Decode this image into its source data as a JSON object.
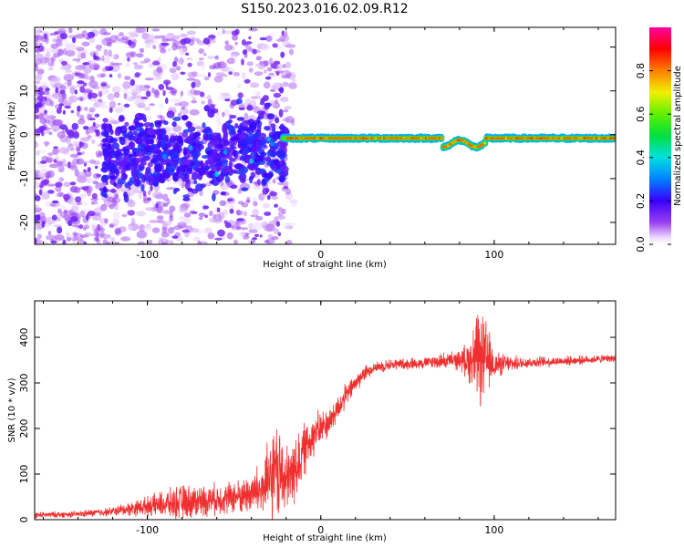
{
  "title": "S150.2023.016.02.09.R12",
  "chart_data": [
    {
      "type": "heatmap",
      "xlabel": "Height of straight line (km)",
      "ylabel": "Frequency (Hz)",
      "xlim": [
        -165,
        170
      ],
      "ylim": [
        -25,
        24.5
      ],
      "xticks": [
        -100,
        0,
        100
      ],
      "yticks": [
        -20,
        -10,
        0,
        10,
        20
      ],
      "colorbar": {
        "label": "Normalized spectral amplitude",
        "range": [
          0,
          1
        ],
        "ticks": [
          0.0,
          0.2,
          0.4,
          0.6,
          0.8
        ]
      },
      "features": [
        {
          "name": "diffuse scatter",
          "x_range": [
            -165,
            -20
          ],
          "freq_range": [
            -25,
            24
          ],
          "amplitude": 0.08
        },
        {
          "name": "clustered returns",
          "x_range": [
            -125,
            -20
          ],
          "freq_range": [
            -13,
            8
          ],
          "amplitude": 0.2
        },
        {
          "name": "narrow band",
          "x_range": [
            -20,
            170
          ],
          "freq_center": -0.8,
          "freq_halfwidth": 1.0,
          "amplitude": 0.85
        }
      ]
    },
    {
      "type": "line",
      "xlabel": "Height of straight line (km)",
      "ylabel": "SNR (10 * v/v)",
      "xlim": [
        -165,
        170
      ],
      "ylim": [
        0,
        480
      ],
      "xticks": [
        -100,
        0,
        100
      ],
      "yticks": [
        0,
        100,
        200,
        300,
        400
      ],
      "color": "#f03030",
      "series": [
        {
          "x": [
            -165,
            -140,
            -120,
            -100,
            -80,
            -60,
            -45,
            -35,
            -28,
            -25,
            -20,
            -15,
            -10,
            -5,
            0,
            5,
            10,
            15,
            20,
            25,
            30,
            40,
            50,
            60,
            70,
            80,
            85,
            90,
            95,
            100,
            110,
            120,
            140,
            160,
            170
          ],
          "values": [
            10,
            12,
            18,
            30,
            38,
            45,
            52,
            65,
            85,
            110,
            80,
            110,
            150,
            185,
            200,
            215,
            245,
            275,
            300,
            320,
            333,
            340,
            342,
            344,
            348,
            350,
            350,
            352,
            350,
            340,
            342,
            345,
            348,
            352,
            355
          ],
          "noise": [
            8,
            8,
            12,
            25,
            45,
            40,
            45,
            70,
            120,
            130,
            90,
            90,
            70,
            60,
            45,
            40,
            35,
            30,
            25,
            20,
            15,
            15,
            15,
            15,
            20,
            25,
            50,
            120,
            110,
            35,
            20,
            15,
            12,
            10,
            10
          ]
        }
      ]
    }
  ]
}
